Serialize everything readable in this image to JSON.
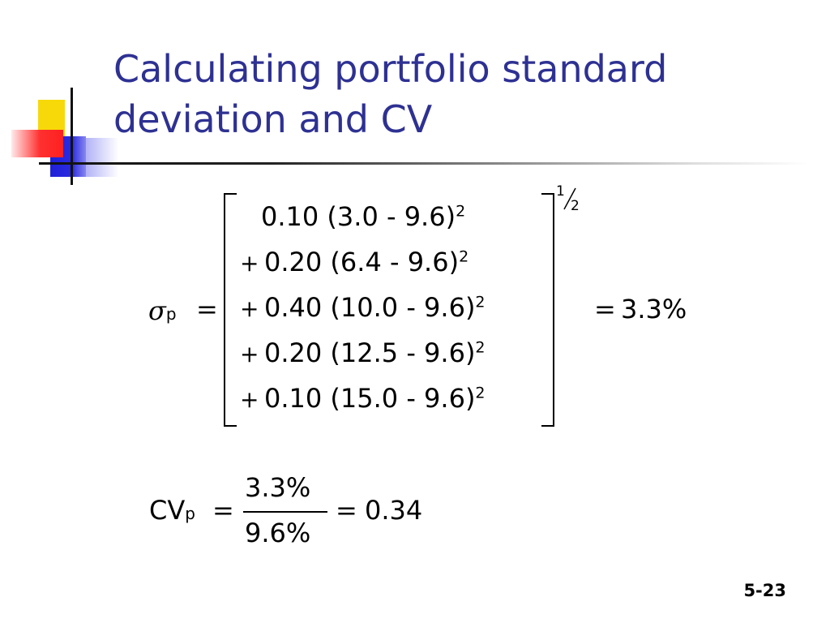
{
  "slide": {
    "title": "Calculating portfolio standard deviation and CV",
    "slide_number": "5-23"
  },
  "formula_sigma": {
    "symbol": "σ",
    "subscript": "p",
    "equals": "=",
    "rows": [
      {
        "prefix": "",
        "term": "0.10 (3.0 - 9.6)",
        "exp": "2"
      },
      {
        "prefix": "+",
        "term": "0.20 (6.4 - 9.6)",
        "exp": "2"
      },
      {
        "prefix": "+",
        "term": "0.40 (10.0 - 9.6)",
        "exp": "2"
      },
      {
        "prefix": "+",
        "term": "0.20 (12.5 - 9.6)",
        "exp": "2"
      },
      {
        "prefix": "+",
        "term": "0.10 (15.0 - 9.6)",
        "exp": "2"
      }
    ],
    "power_numerator": "1",
    "power_denominator": "2",
    "result": "3.3%"
  },
  "formula_cv": {
    "label": "CV",
    "subscript": "p",
    "equals": "=",
    "numerator": "3.3%",
    "denominator": "9.6%",
    "result": "0.34"
  }
}
